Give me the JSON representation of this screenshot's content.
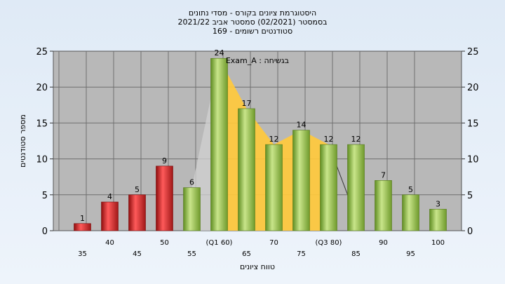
{
  "chart_data": {
    "type": "bar",
    "title_lines": [
      "היסטוגרמת ציונים בקורס - מסדי נתונים",
      "בסמסטר  (02/2021)  סמסטר אביב 2021/22",
      "169 - סטודנטים רשומים"
    ],
    "xlabel": "טווח ציונים",
    "ylabel": "מספר סטודנטים",
    "ylim": [
      0,
      25
    ],
    "yticks": [
      0,
      5,
      10,
      15,
      20,
      25
    ],
    "grid": true,
    "annotation": "Exam_A : בגשיחה",
    "categories": [
      "35",
      "40",
      "45",
      "50",
      "55",
      "(Q1 60)",
      "65",
      "70",
      "75",
      "(Q3 80)",
      "85",
      "90",
      "95",
      "100"
    ],
    "values": [
      1,
      4,
      5,
      9,
      6,
      24,
      17,
      12,
      14,
      12,
      12,
      7,
      5,
      3
    ],
    "bar_colors": [
      "red",
      "red",
      "red",
      "red",
      "green",
      "green",
      "green",
      "green",
      "green",
      "green",
      "green",
      "green",
      "green",
      "green"
    ],
    "colors": {
      "red_bar": "#d92a2a",
      "green_bar": "#96c24e",
      "plot_bg": "#b8b8b8",
      "interquartile_area": "#ffc93c"
    }
  }
}
